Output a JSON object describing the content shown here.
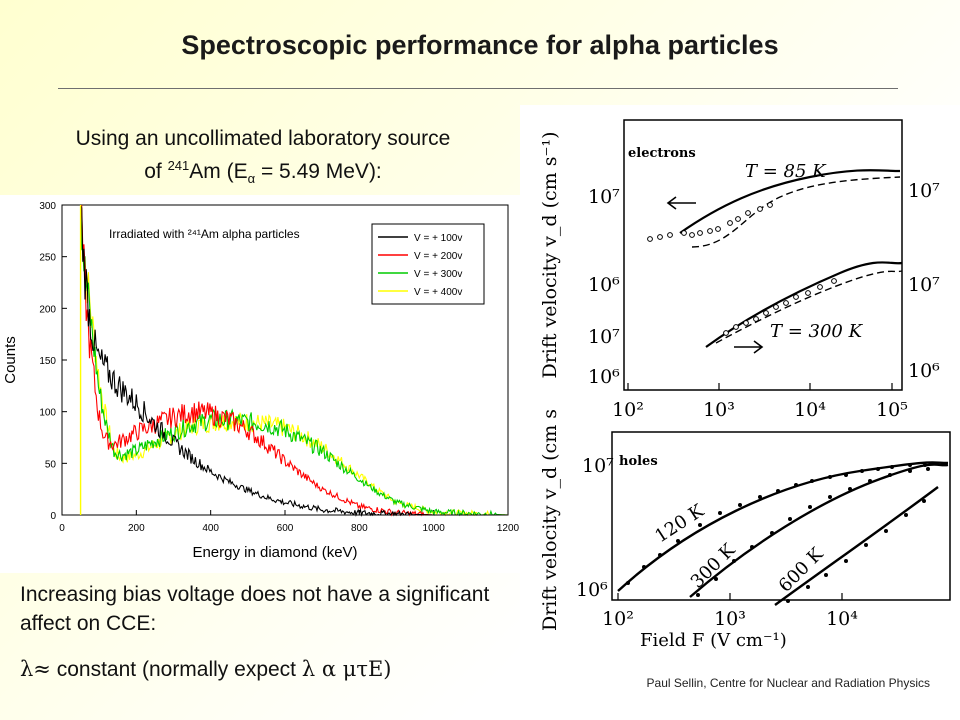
{
  "slide": {
    "title": "Spectroscopic performance for alpha particles",
    "intro_line1": "Using an uncollimated laboratory source",
    "intro_line2_prefix": "of ",
    "intro_isotope_mass": "241",
    "intro_isotope": "Am (E",
    "intro_alpha": "α",
    "intro_energy": " = 5.49 MeV):",
    "conclusion": "Increasing bias voltage does not have a significant affect on CCE:",
    "formula_lhs": "λ≈",
    "formula_text": " constant (normally expect ",
    "formula_rhs": "λ α μτE)",
    "footer": "Paul Sellin, Centre for Nuclear and Radiation Physics"
  },
  "chart_data": [
    {
      "type": "line",
      "annotation": "Irradiated with ²⁴¹Am alpha particles",
      "xlabel": "Energy in diamond (keV)",
      "ylabel": "Counts",
      "xlim": [
        0,
        1200
      ],
      "ylim": [
        0,
        300
      ],
      "xticks": [
        "0",
        "200",
        "400",
        "600",
        "800",
        "1000",
        "1200"
      ],
      "yticks": [
        "0",
        "50",
        "100",
        "150",
        "200",
        "250",
        "300"
      ],
      "legend_position": "top-right",
      "colors": [
        "#000000",
        "#ff0000",
        "#00cc00",
        "#ffff00"
      ],
      "series": [
        {
          "name": "V = + 100v",
          "color": "#000000",
          "x": [
            50,
            60,
            75,
            90,
            100,
            120,
            140,
            160,
            180,
            200,
            220,
            250,
            300,
            350,
            400,
            450,
            500,
            550,
            600,
            700,
            800,
            900,
            1000,
            1100,
            1200
          ],
          "y": [
            300,
            240,
            190,
            160,
            150,
            140,
            130,
            122,
            115,
            108,
            100,
            88,
            70,
            55,
            42,
            32,
            24,
            17,
            12,
            5,
            2,
            1,
            0,
            0,
            0
          ]
        },
        {
          "name": "V = + 200v",
          "color": "#ff0000",
          "x": [
            50,
            60,
            70,
            80,
            90,
            100,
            110,
            120,
            140,
            160,
            200,
            250,
            300,
            350,
            400,
            450,
            500,
            550,
            600,
            650,
            700,
            800,
            900,
            1000,
            1200
          ],
          "y": [
            300,
            230,
            180,
            150,
            120,
            95,
            80,
            72,
            68,
            72,
            80,
            88,
            95,
            100,
            98,
            92,
            82,
            68,
            52,
            38,
            25,
            8,
            2,
            0,
            0
          ]
        },
        {
          "name": "V = + 300v",
          "color": "#00cc00",
          "x": [
            50,
            60,
            70,
            80,
            90,
            100,
            120,
            140,
            160,
            200,
            250,
            300,
            350,
            400,
            450,
            500,
            550,
            600,
            650,
            700,
            750,
            800,
            850,
            900,
            1000,
            1200
          ],
          "y": [
            300,
            240,
            210,
            180,
            150,
            120,
            85,
            62,
            58,
            62,
            72,
            80,
            88,
            92,
            92,
            90,
            88,
            82,
            72,
            62,
            48,
            35,
            22,
            12,
            3,
            0
          ]
        },
        {
          "name": "V = + 400v",
          "color": "#ffff00",
          "x": [
            50,
            60,
            70,
            80,
            90,
            100,
            120,
            140,
            160,
            200,
            250,
            300,
            350,
            400,
            450,
            500,
            550,
            600,
            650,
            700,
            750,
            800,
            850,
            900,
            1000,
            1200
          ],
          "y": [
            300,
            250,
            220,
            190,
            160,
            130,
            90,
            62,
            55,
            58,
            68,
            78,
            86,
            90,
            91,
            90,
            88,
            84,
            76,
            66,
            52,
            38,
            24,
            12,
            3,
            0
          ]
        }
      ]
    },
    {
      "type": "line",
      "annotation": "electrons",
      "xlabel": "",
      "ylabel": "Drift velocity v_d (cm s⁻¹)",
      "x_scale": "log",
      "xticks": [
        "10²",
        "10³",
        "10⁴",
        "10⁵"
      ],
      "yticks_left": [
        "10⁶",
        "10⁷",
        "10⁶",
        "10⁷"
      ],
      "yticks_right": [
        "10⁷",
        "10⁷",
        "10⁶"
      ],
      "curve_labels": [
        "T = 85 K",
        "T = 300 K"
      ]
    },
    {
      "type": "line",
      "annotation": "holes",
      "xlabel": "Field F (V cm⁻¹)",
      "ylabel": "Drift velocity v_d (cm s",
      "x_scale": "log",
      "y_scale": "log",
      "xticks": [
        "10²",
        "10³",
        "10⁴"
      ],
      "yticks": [
        "10⁶",
        "10⁷"
      ],
      "curve_labels": [
        "120 K",
        "300 K",
        "600 K"
      ]
    }
  ]
}
